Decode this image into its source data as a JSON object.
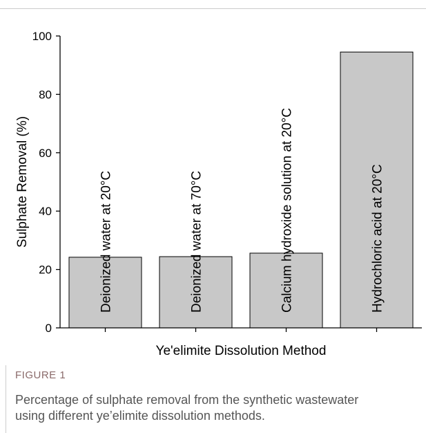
{
  "chart_data": {
    "type": "bar",
    "x_label": "Ye'elimite Dissolution Method",
    "y_label": "Sulphate Removal (%)",
    "categories": [
      "Deionized water at 20°C",
      "Deionized water at 70°C",
      "Calcium hydroxide solution at 20°C",
      "Hydrochloric acid at 20°C"
    ],
    "values": [
      24.2,
      24.4,
      25.6,
      94.5
    ],
    "color": "#c8c8c8",
    "ylim": [
      0,
      100
    ],
    "yticks": [
      0,
      20,
      40,
      60,
      80,
      100
    ],
    "grid": false
  },
  "figure": {
    "label": "FIGURE 1",
    "caption": "Percentage of sulphate removal from the synthetic wastewater using different ye’elimite dissolution methods."
  }
}
